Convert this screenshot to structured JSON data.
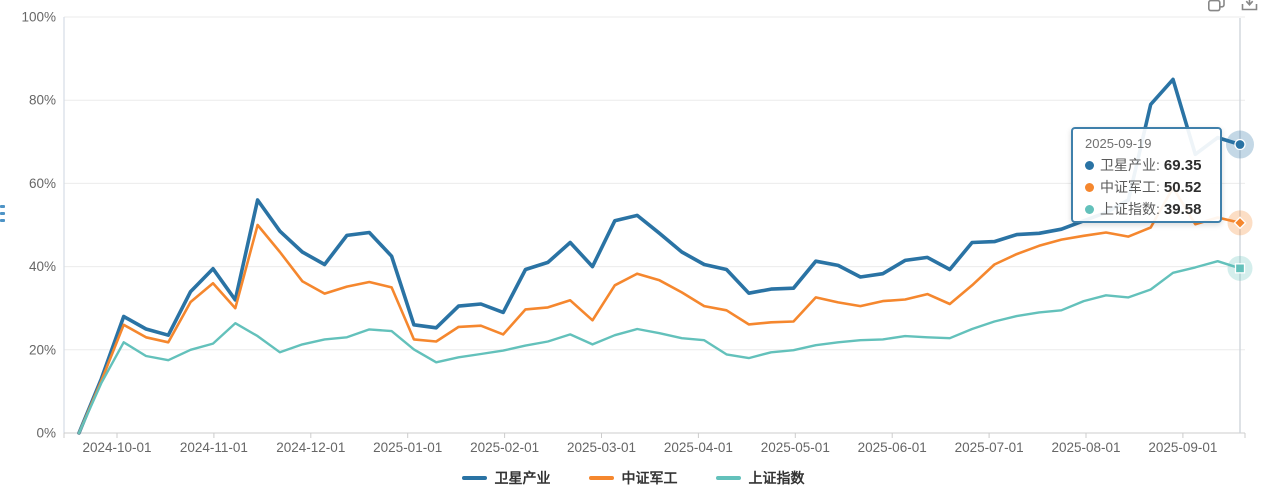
{
  "colors": {
    "blue": "#2a73a4",
    "orange": "#f5872e",
    "teal": "#63c1bb",
    "grid": "#ebebeb",
    "axis_line": "#cccccc",
    "plot_border": "#d5dde5",
    "crosshair": "#d0d6dc",
    "tooltip_border": "#3f80ab",
    "axis_text": "#666666",
    "legend_text": "#333333",
    "icon": "#737373"
  },
  "toolbar": {
    "icons": [
      {
        "name": "restore-icon"
      },
      {
        "name": "save-image-icon"
      }
    ]
  },
  "tooltip": {
    "date": "2025-09-19",
    "rows": [
      {
        "label": "卫星产业:",
        "value": "69.35",
        "color": "#2a73a4"
      },
      {
        "label": "中证军工:",
        "value": "50.52",
        "color": "#f5872e"
      },
      {
        "label": "上证指数:",
        "value": "39.58",
        "color": "#63c1bb"
      }
    ]
  },
  "legend": {
    "items": [
      {
        "label": "卫星产业",
        "color": "#2a73a4"
      },
      {
        "label": "中证军工",
        "color": "#f5872e"
      },
      {
        "label": "上证指数",
        "color": "#63c1bb"
      }
    ]
  },
  "chart_data": {
    "type": "line",
    "title": "",
    "xlabel": "",
    "ylabel": "",
    "ylim": [
      0,
      100
    ],
    "grid": true,
    "legend_position": "bottom",
    "y_tick_labels": [
      "0%",
      "20%",
      "40%",
      "60%",
      "80%",
      "100%"
    ],
    "x_tick_labels": [
      "2024-10-01",
      "2024-11-01",
      "2024-12-01",
      "2025-01-01",
      "2025-02-01",
      "2025-03-01",
      "2025-04-01",
      "2025-05-01",
      "2025-06-01",
      "2025-07-01",
      "2025-08-01",
      "2025-09-01"
    ],
    "dates": [
      "2024-09-20",
      "2024-09-27",
      "2024-10-04",
      "2024-10-11",
      "2024-10-18",
      "2024-10-25",
      "2024-11-01",
      "2024-11-08",
      "2024-11-15",
      "2024-11-22",
      "2024-11-29",
      "2024-12-06",
      "2024-12-13",
      "2024-12-20",
      "2024-12-27",
      "2025-01-03",
      "2025-01-10",
      "2025-01-17",
      "2025-01-24",
      "2025-01-31",
      "2025-02-07",
      "2025-02-14",
      "2025-02-21",
      "2025-02-28",
      "2025-03-07",
      "2025-03-14",
      "2025-03-21",
      "2025-03-28",
      "2025-04-04",
      "2025-04-11",
      "2025-04-18",
      "2025-04-25",
      "2025-05-02",
      "2025-05-09",
      "2025-05-16",
      "2025-05-23",
      "2025-05-30",
      "2025-06-06",
      "2025-06-13",
      "2025-06-20",
      "2025-06-27",
      "2025-07-04",
      "2025-07-11",
      "2025-07-18",
      "2025-07-25",
      "2025-08-01",
      "2025-08-08",
      "2025-08-15",
      "2025-08-22",
      "2025-08-29",
      "2025-09-05",
      "2025-09-12",
      "2025-09-19"
    ],
    "series": [
      {
        "name": "卫星产业",
        "color": "#2a73a4",
        "line_width": 3.6,
        "marker": "circle",
        "end_value": 69.35,
        "values": [
          0,
          13,
          28,
          25,
          23.5,
          34,
          39.5,
          32,
          56,
          48.5,
          43.5,
          40.5,
          47.5,
          48.2,
          42.5,
          26,
          25.3,
          30.5,
          31,
          29,
          39.3,
          41,
          45.8,
          40,
          51,
          52.3,
          48,
          43.5,
          40.5,
          39.3,
          33.6,
          34.6,
          34.8,
          41.3,
          40.3,
          37.5,
          38.3,
          41.5,
          42.2,
          39.3,
          45.8,
          46,
          47.7,
          48,
          49,
          51,
          53,
          56,
          79,
          85,
          67,
          71,
          69.35
        ]
      },
      {
        "name": "中证军工",
        "color": "#f5872e",
        "line_width": 2.6,
        "marker": "diamond",
        "end_value": 50.52,
        "values": [
          0,
          12.5,
          26,
          23,
          21.8,
          31.5,
          36,
          30,
          50,
          43.5,
          36.5,
          33.5,
          35.2,
          36.3,
          35,
          22.5,
          22,
          25.5,
          25.8,
          23.7,
          29.7,
          30.2,
          31.9,
          27.1,
          35.5,
          38.3,
          36.7,
          33.8,
          30.5,
          29.5,
          26.1,
          26.6,
          26.8,
          32.6,
          31.4,
          30.5,
          31.7,
          32.1,
          33.4,
          31,
          35.5,
          40.5,
          43,
          45,
          46.5,
          47.4,
          48.2,
          47.2,
          49.4,
          59,
          50.2,
          51.8,
          50.52
        ]
      },
      {
        "name": "上证指数",
        "color": "#63c1bb",
        "line_width": 2.4,
        "marker": "square",
        "end_value": 39.58,
        "values": [
          0,
          12,
          21.8,
          18.5,
          17.5,
          20,
          21.5,
          26.4,
          23.3,
          19.4,
          21.3,
          22.5,
          23,
          24.9,
          24.5,
          20.1,
          17,
          18.2,
          19,
          19.8,
          21,
          22,
          23.7,
          21.3,
          23.5,
          25,
          24,
          22.8,
          22.3,
          18.9,
          18,
          19.4,
          19.9,
          21.1,
          21.8,
          22.3,
          22.5,
          23.3,
          23,
          22.8,
          25,
          26.8,
          28.1,
          29,
          29.5,
          31.7,
          33.1,
          32.6,
          34.5,
          38.5,
          39.8,
          41.3,
          39.58
        ]
      }
    ]
  }
}
